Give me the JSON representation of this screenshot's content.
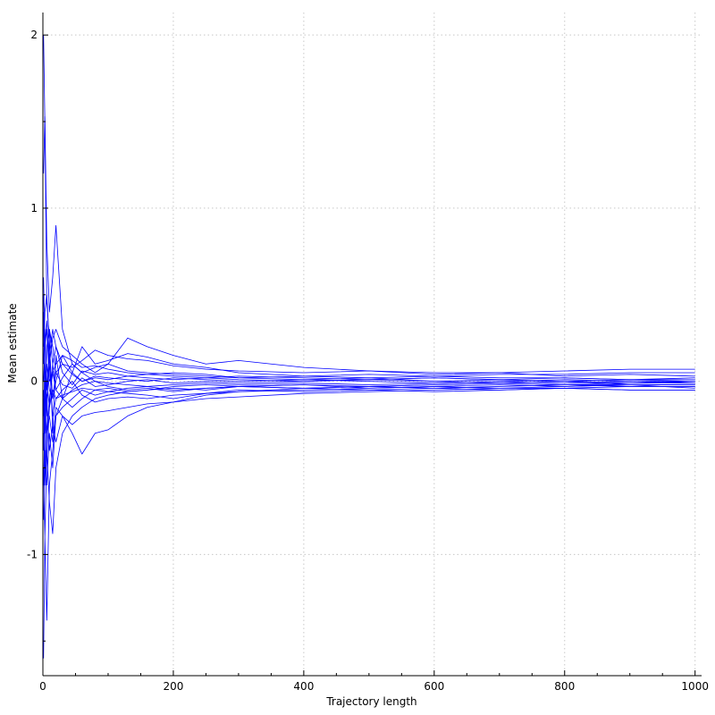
{
  "chart_data": {
    "type": "line",
    "title": "",
    "xlabel": "Trajectory length",
    "ylabel": "Mean estimate",
    "xlim": [
      0,
      1010
    ],
    "ylim": [
      -1.7,
      2.13
    ],
    "xticks": [
      0,
      200,
      400,
      600,
      800,
      1000
    ],
    "yticks": [
      -1,
      0,
      1,
      2
    ],
    "xtick_labels": [
      "0",
      "200",
      "400",
      "600",
      "800",
      "1000"
    ],
    "ytick_labels": [
      "-1",
      "0",
      "1",
      "2"
    ],
    "grid": true,
    "legend": "none",
    "line_color": "#0000ff",
    "series": [
      {
        "x": [
          1,
          3,
          6,
          10,
          15,
          20,
          30,
          45,
          60,
          80,
          100,
          130,
          160,
          200,
          250,
          300,
          400,
          500,
          600,
          700,
          800,
          900,
          1000
        ],
        "y": [
          2.0,
          1.5,
          0.45,
          0.25,
          -0.3,
          0.15,
          -0.1,
          0.05,
          0.2,
          0.1,
          0.12,
          0.16,
          0.14,
          0.1,
          0.08,
          0.05,
          0.03,
          0.02,
          0.03,
          0.04,
          0.04,
          0.05,
          0.05
        ]
      },
      {
        "x": [
          1,
          3,
          6,
          10,
          15,
          20,
          30,
          45,
          60,
          80,
          100,
          130,
          160,
          200,
          250,
          300,
          400,
          500,
          600,
          700,
          800,
          900,
          1000
        ],
        "y": [
          -1.6,
          -0.9,
          -1.38,
          -0.6,
          -0.4,
          -0.2,
          -0.1,
          -0.15,
          -0.1,
          -0.05,
          -0.04,
          -0.06,
          -0.05,
          -0.03,
          -0.02,
          -0.03,
          -0.02,
          -0.04,
          -0.03,
          -0.02,
          -0.03,
          -0.02,
          -0.04
        ]
      },
      {
        "x": [
          1,
          3,
          6,
          10,
          15,
          20,
          30,
          45,
          60,
          80,
          100,
          130,
          160,
          200,
          250,
          300,
          400,
          500,
          600,
          700,
          800,
          900,
          1000
        ],
        "y": [
          1.2,
          1.53,
          0.8,
          0.4,
          0.6,
          0.9,
          0.3,
          0.1,
          0.05,
          0.08,
          0.1,
          0.06,
          0.05,
          0.04,
          0.03,
          0.02,
          0.01,
          0.02,
          0.0,
          0.01,
          0.02,
          0.01,
          0.02
        ]
      },
      {
        "x": [
          1,
          3,
          6,
          10,
          15,
          20,
          30,
          45,
          60,
          80,
          100,
          130,
          160,
          200,
          250,
          300,
          400,
          500,
          600,
          700,
          800,
          900,
          1000
        ],
        "y": [
          -0.5,
          -0.9,
          -0.4,
          -0.7,
          -0.88,
          -0.5,
          -0.3,
          -0.2,
          -0.15,
          -0.1,
          -0.08,
          -0.06,
          -0.05,
          -0.04,
          -0.05,
          -0.03,
          -0.04,
          -0.05,
          -0.04,
          -0.03,
          -0.02,
          -0.03,
          -0.03
        ]
      },
      {
        "x": [
          1,
          3,
          6,
          10,
          15,
          20,
          30,
          45,
          60,
          80,
          100,
          130,
          160,
          200,
          250,
          300,
          400,
          500,
          600,
          700,
          800,
          900,
          1000
        ],
        "y": [
          0.3,
          0.1,
          -0.2,
          0.3,
          0.2,
          0.05,
          0.1,
          0.08,
          0.12,
          0.18,
          0.15,
          0.13,
          0.12,
          0.09,
          0.07,
          0.06,
          0.05,
          0.06,
          0.05,
          0.05,
          0.06,
          0.07,
          0.07
        ]
      },
      {
        "x": [
          1,
          3,
          6,
          10,
          15,
          20,
          30,
          45,
          60,
          80,
          100,
          130,
          160,
          200,
          250,
          300,
          400,
          500,
          600,
          700,
          800,
          900,
          1000
        ],
        "y": [
          -0.3,
          -0.5,
          -0.1,
          -0.4,
          -0.25,
          -0.35,
          -0.2,
          -0.3,
          -0.42,
          -0.3,
          -0.28,
          -0.2,
          -0.15,
          -0.12,
          -0.08,
          -0.06,
          -0.04,
          -0.03,
          -0.02,
          -0.01,
          -0.02,
          -0.01,
          -0.01
        ]
      },
      {
        "x": [
          1,
          3,
          6,
          10,
          15,
          20,
          30,
          45,
          60,
          80,
          100,
          130,
          160,
          200,
          250,
          300,
          400,
          500,
          600,
          700,
          800,
          900,
          1000
        ],
        "y": [
          0.1,
          0.4,
          0.5,
          0.2,
          -0.1,
          0.0,
          0.15,
          0.05,
          0.0,
          0.03,
          0.02,
          0.01,
          0.0,
          0.02,
          0.01,
          0.0,
          0.01,
          0.0,
          -0.01,
          0.0,
          0.01,
          0.0,
          0.0
        ]
      },
      {
        "x": [
          1,
          3,
          6,
          10,
          15,
          20,
          30,
          45,
          60,
          80,
          100,
          130,
          160,
          200,
          250,
          300,
          400,
          500,
          600,
          700,
          800,
          900,
          1000
        ],
        "y": [
          -0.8,
          -0.4,
          -0.6,
          -0.3,
          -0.5,
          -0.2,
          -0.15,
          -0.1,
          -0.05,
          -0.08,
          -0.06,
          -0.07,
          -0.08,
          -0.1,
          -0.07,
          -0.05,
          -0.06,
          -0.05,
          -0.06,
          -0.05,
          -0.04,
          -0.05,
          -0.05
        ]
      },
      {
        "x": [
          1,
          3,
          6,
          10,
          15,
          20,
          30,
          45,
          60,
          80,
          100,
          130,
          160,
          200,
          250,
          300,
          400,
          500,
          600,
          700,
          800,
          900,
          1000
        ],
        "y": [
          0.6,
          0.2,
          0.35,
          0.1,
          0.25,
          0.3,
          0.2,
          0.15,
          0.1,
          0.05,
          0.1,
          0.25,
          0.2,
          0.15,
          0.1,
          0.12,
          0.08,
          0.06,
          0.04,
          0.05,
          0.03,
          0.04,
          0.03
        ]
      },
      {
        "x": [
          1,
          3,
          6,
          10,
          15,
          20,
          30,
          45,
          60,
          80,
          100,
          130,
          160,
          200,
          250,
          300,
          400,
          500,
          600,
          700,
          800,
          900,
          1000
        ],
        "y": [
          -0.2,
          0.1,
          -0.3,
          -0.1,
          0.05,
          -0.05,
          -0.1,
          -0.05,
          -0.02,
          0.0,
          -0.01,
          -0.02,
          -0.03,
          -0.02,
          -0.01,
          -0.02,
          -0.01,
          -0.02,
          -0.01,
          0.0,
          -0.01,
          0.0,
          -0.01
        ]
      },
      {
        "x": [
          1,
          3,
          6,
          10,
          15,
          20,
          30,
          45,
          60,
          80,
          100,
          130,
          160,
          200,
          250,
          300,
          400,
          500,
          600,
          700,
          800,
          900,
          1000
        ],
        "y": [
          0.4,
          -0.2,
          0.2,
          0.3,
          0.1,
          0.2,
          0.05,
          -0.02,
          0.06,
          0.04,
          0.05,
          0.03,
          0.04,
          0.03,
          0.02,
          0.03,
          0.02,
          0.01,
          0.02,
          0.01,
          0.0,
          -0.01,
          0.0
        ]
      },
      {
        "x": [
          1,
          3,
          6,
          10,
          15,
          20,
          30,
          45,
          60,
          80,
          100,
          130,
          160,
          200,
          250,
          300,
          400,
          500,
          600,
          700,
          800,
          900,
          1000
        ],
        "y": [
          -0.1,
          -0.6,
          -0.3,
          -0.2,
          -0.35,
          -0.15,
          -0.2,
          -0.25,
          -0.2,
          -0.18,
          -0.17,
          -0.15,
          -0.13,
          -0.12,
          -0.1,
          -0.09,
          -0.07,
          -0.06,
          -0.05,
          -0.04,
          -0.04,
          -0.03,
          -0.03
        ]
      },
      {
        "x": [
          1,
          3,
          6,
          10,
          15,
          20,
          30,
          45,
          60,
          80,
          100,
          130,
          160,
          200,
          250,
          300,
          400,
          500,
          600,
          700,
          800,
          900,
          1000
        ],
        "y": [
          0.2,
          0.3,
          0.0,
          -0.15,
          0.1,
          -0.05,
          0.02,
          0.1,
          0.05,
          0.0,
          -0.03,
          -0.05,
          -0.04,
          -0.06,
          -0.04,
          -0.03,
          -0.02,
          -0.03,
          -0.02,
          -0.01,
          -0.02,
          -0.02,
          -0.02
        ]
      },
      {
        "x": [
          1,
          3,
          6,
          10,
          15,
          20,
          30,
          45,
          60,
          80,
          100,
          130,
          160,
          200,
          250,
          300,
          400,
          500,
          600,
          700,
          800,
          900,
          1000
        ],
        "y": [
          -0.4,
          0.0,
          -0.1,
          0.1,
          -0.2,
          -0.1,
          -0.05,
          0.0,
          -0.08,
          -0.12,
          -0.1,
          -0.09,
          -0.1,
          -0.08,
          -0.07,
          -0.06,
          -0.05,
          -0.04,
          -0.03,
          -0.04,
          -0.03,
          -0.02,
          -0.02
        ]
      },
      {
        "x": [
          1,
          3,
          6,
          10,
          15,
          20,
          30,
          45,
          60,
          80,
          100,
          130,
          160,
          200,
          250,
          300,
          400,
          500,
          600,
          700,
          800,
          900,
          1000
        ],
        "y": [
          0.0,
          0.2,
          0.3,
          0.0,
          0.05,
          0.1,
          0.15,
          0.12,
          0.08,
          0.09,
          0.07,
          0.05,
          0.04,
          0.05,
          0.04,
          0.02,
          0.03,
          0.04,
          0.03,
          0.02,
          0.02,
          0.01,
          0.01
        ]
      },
      {
        "x": [
          1,
          3,
          6,
          10,
          15,
          20,
          30,
          45,
          60,
          80,
          100,
          130,
          160,
          200,
          250,
          300,
          400,
          500,
          600,
          700,
          800,
          900,
          1000
        ],
        "y": [
          -0.05,
          -0.3,
          0.1,
          -0.05,
          -0.1,
          0.05,
          -0.02,
          -0.04,
          0.02,
          -0.03,
          -0.02,
          0.0,
          0.01,
          -0.01,
          0.0,
          -0.01,
          0.0,
          0.01,
          0.0,
          -0.01,
          0.0,
          0.01,
          0.0
        ]
      },
      {
        "x": [
          1,
          3,
          6,
          10,
          15,
          20,
          30,
          45,
          60,
          80,
          100,
          130,
          160,
          200,
          250,
          300,
          400,
          500,
          600,
          700,
          800,
          900,
          1000
        ],
        "y": [
          0.5,
          0.1,
          -0.05,
          0.15,
          0.3,
          0.2,
          0.1,
          0.04,
          0.0,
          0.02,
          0.01,
          0.03,
          0.02,
          0.01,
          0.02,
          0.01,
          0.0,
          0.01,
          0.02,
          0.01,
          0.0,
          -0.02,
          -0.02
        ]
      },
      {
        "x": [
          1,
          3,
          6,
          10,
          15,
          20,
          30,
          45,
          60,
          80,
          100,
          130,
          160,
          200,
          250,
          300,
          400,
          500,
          600,
          700,
          800,
          900,
          1000
        ],
        "y": [
          -0.6,
          -0.2,
          -0.45,
          -0.15,
          -0.05,
          -0.1,
          -0.08,
          -0.06,
          -0.04,
          -0.05,
          -0.06,
          -0.04,
          -0.03,
          -0.05,
          -0.04,
          -0.03,
          -0.04,
          -0.03,
          -0.04,
          -0.05,
          -0.04,
          -0.05,
          -0.05
        ]
      }
    ]
  }
}
